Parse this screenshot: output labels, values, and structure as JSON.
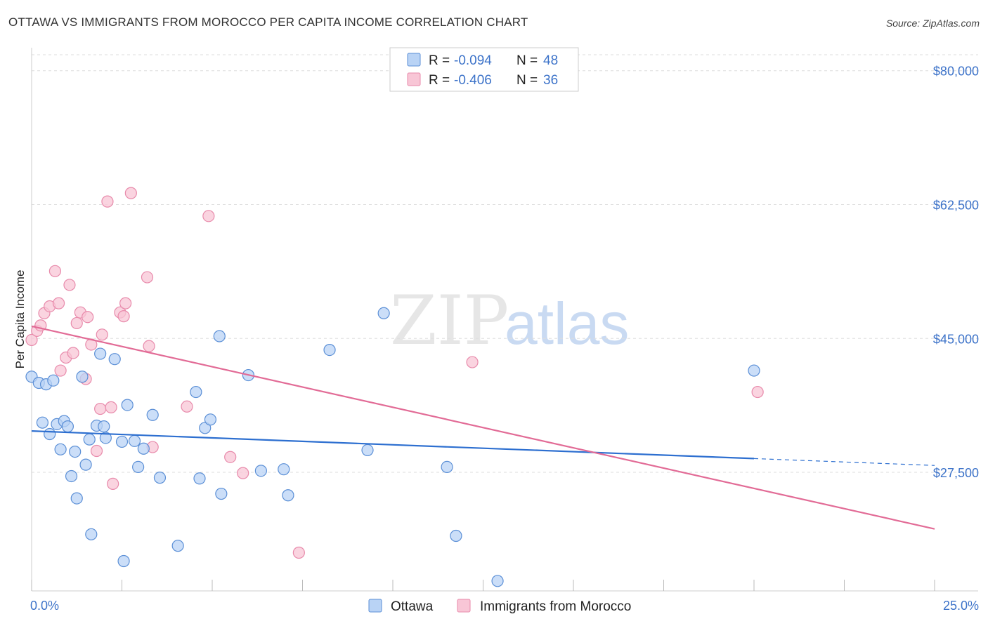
{
  "title": "OTTAWA VS IMMIGRANTS FROM MOROCCO PER CAPITA INCOME CORRELATION CHART",
  "source": "Source: ZipAtlas.com",
  "watermark": {
    "zip": "ZIP",
    "atlas": "atlas"
  },
  "colors": {
    "ottawa_fill": "#b9d3f5",
    "ottawa_stroke": "#5b8fd6",
    "ottawa_line": "#2d6fd0",
    "morocco_fill": "#f8c6d6",
    "morocco_stroke": "#e88aab",
    "morocco_line": "#e26b96",
    "tick_text": "#3d73c9",
    "grid": "#dddddd"
  },
  "legend": {
    "r_label": "R =",
    "n_label": "N =",
    "rows": [
      {
        "series": "Ottawa",
        "r": "-0.094",
        "n": "48"
      },
      {
        "series": "Immigrants from Morocco",
        "r": "-0.406",
        "n": "36"
      }
    ]
  },
  "chart_data": {
    "type": "scatter",
    "title": "OTTAWA VS IMMIGRANTS FROM MOROCCO PER CAPITA INCOME CORRELATION CHART",
    "xlabel": "",
    "ylabel": "Per Capita Income",
    "xlim": [
      0,
      25
    ],
    "ylim": [
      12000,
      83000
    ],
    "x_tick_labels": [
      "0.0%",
      "25.0%"
    ],
    "y_ticks": [
      27500,
      45000,
      62500,
      80000
    ],
    "y_tick_labels": [
      "$27,500",
      "$45,000",
      "$62,500",
      "$80,000"
    ],
    "grid": true,
    "series": [
      {
        "name": "Ottawa",
        "points": [
          [
            0.0,
            40000
          ],
          [
            0.2,
            39200
          ],
          [
            0.3,
            34000
          ],
          [
            0.4,
            39000
          ],
          [
            0.5,
            32500
          ],
          [
            0.6,
            39500
          ],
          [
            0.7,
            33800
          ],
          [
            0.8,
            30500
          ],
          [
            0.9,
            34200
          ],
          [
            1.0,
            33500
          ],
          [
            1.1,
            27000
          ],
          [
            1.2,
            30200
          ],
          [
            1.25,
            24100
          ],
          [
            1.4,
            40000
          ],
          [
            1.5,
            28500
          ],
          [
            1.6,
            31800
          ],
          [
            1.65,
            19400
          ],
          [
            1.8,
            33600
          ],
          [
            1.9,
            43000
          ],
          [
            2.0,
            33500
          ],
          [
            2.05,
            32000
          ],
          [
            2.3,
            42300
          ],
          [
            2.5,
            31500
          ],
          [
            2.55,
            15900
          ],
          [
            2.65,
            36300
          ],
          [
            2.85,
            31600
          ],
          [
            2.95,
            28200
          ],
          [
            3.1,
            30600
          ],
          [
            3.35,
            35000
          ],
          [
            3.55,
            26800
          ],
          [
            4.05,
            17900
          ],
          [
            4.55,
            38000
          ],
          [
            4.65,
            26700
          ],
          [
            4.8,
            33300
          ],
          [
            4.95,
            34400
          ],
          [
            5.2,
            45300
          ],
          [
            5.25,
            24700
          ],
          [
            6.0,
            40200
          ],
          [
            6.35,
            27700
          ],
          [
            6.98,
            27900
          ],
          [
            7.1,
            24500
          ],
          [
            8.25,
            43500
          ],
          [
            9.3,
            30400
          ],
          [
            9.75,
            48300
          ],
          [
            11.5,
            28200
          ],
          [
            11.75,
            19200
          ],
          [
            12.9,
            13300
          ],
          [
            20.0,
            40800
          ]
        ]
      },
      {
        "name": "Immigrants from Morocco",
        "points": [
          [
            0.0,
            44800
          ],
          [
            0.15,
            46000
          ],
          [
            0.25,
            46700
          ],
          [
            0.35,
            48300
          ],
          [
            0.5,
            49200
          ],
          [
            0.65,
            53800
          ],
          [
            0.75,
            49600
          ],
          [
            0.8,
            40800
          ],
          [
            0.95,
            42500
          ],
          [
            1.05,
            52000
          ],
          [
            1.15,
            43100
          ],
          [
            1.25,
            47000
          ],
          [
            1.35,
            48400
          ],
          [
            1.5,
            39700
          ],
          [
            1.55,
            47800
          ],
          [
            1.65,
            44200
          ],
          [
            1.8,
            30300
          ],
          [
            1.9,
            35800
          ],
          [
            1.95,
            45500
          ],
          [
            2.1,
            62900
          ],
          [
            2.2,
            36000
          ],
          [
            2.25,
            26000
          ],
          [
            2.45,
            48400
          ],
          [
            2.55,
            47900
          ],
          [
            2.6,
            49600
          ],
          [
            2.75,
            64000
          ],
          [
            3.2,
            53000
          ],
          [
            3.25,
            44000
          ],
          [
            3.35,
            30800
          ],
          [
            4.3,
            36100
          ],
          [
            4.9,
            61000
          ],
          [
            5.5,
            29500
          ],
          [
            5.85,
            27400
          ],
          [
            7.4,
            17000
          ],
          [
            12.2,
            41900
          ],
          [
            20.1,
            38000
          ]
        ]
      }
    ],
    "trend_lines": [
      {
        "series": "Ottawa",
        "x1": 0,
        "y1": 32900,
        "x2": 20,
        "y2": 29300,
        "dashed_to_x": 25,
        "dashed_to_y": 28400
      },
      {
        "series": "Immigrants from Morocco",
        "x1": 0,
        "y1": 46600,
        "x2": 25,
        "y2": 20100
      }
    ]
  }
}
